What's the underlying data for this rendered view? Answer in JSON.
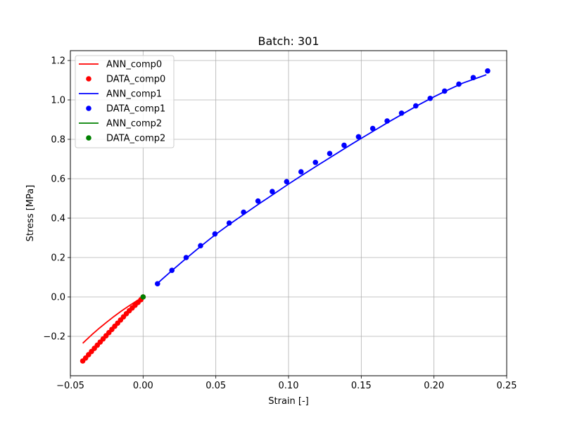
{
  "chart_data": {
    "type": "scatter",
    "title": "Batch: 301",
    "xlabel": "Strain [-]",
    "ylabel": "Stress [MPa]",
    "xlim": [
      -0.05,
      0.25
    ],
    "ylim": [
      -0.4,
      1.25
    ],
    "xticks": [
      -0.05,
      0.0,
      0.05,
      0.1,
      0.15,
      0.2,
      0.25
    ],
    "xtick_labels": [
      "−0.05",
      "0.00",
      "0.05",
      "0.10",
      "0.15",
      "0.20",
      "0.25"
    ],
    "yticks": [
      -0.2,
      0.0,
      0.2,
      0.4,
      0.6,
      0.8,
      1.0,
      1.2
    ],
    "ytick_labels": [
      "−0.2",
      "0.0",
      "0.2",
      "0.4",
      "0.6",
      "0.8",
      "1.0",
      "1.2"
    ],
    "grid": true,
    "legend_position": "top-left",
    "legend": [
      {
        "label": "ANN_comp0",
        "kind": "line",
        "color": "#ff0000"
      },
      {
        "label": "DATA_comp0",
        "kind": "marker",
        "color": "#ff0000"
      },
      {
        "label": "ANN_comp1",
        "kind": "line",
        "color": "#0000ff"
      },
      {
        "label": "DATA_comp1",
        "kind": "marker",
        "color": "#0000ff"
      },
      {
        "label": "ANN_comp2",
        "kind": "line",
        "color": "#008000"
      },
      {
        "label": "DATA_comp2",
        "kind": "marker",
        "color": "#008000"
      }
    ],
    "series": [
      {
        "name": "ANN_comp0",
        "kind": "line",
        "color": "#ff0000",
        "x": [
          -0.0415,
          -0.035,
          -0.03,
          -0.025,
          -0.02,
          -0.015,
          -0.01,
          -0.005,
          0.0
        ],
        "y": [
          -0.235,
          -0.19,
          -0.158,
          -0.128,
          -0.099,
          -0.072,
          -0.047,
          -0.023,
          0.0
        ]
      },
      {
        "name": "DATA_comp0",
        "kind": "marker",
        "color": "#ff0000",
        "x": [
          -0.0415,
          -0.0395,
          -0.0375,
          -0.0355,
          -0.0335,
          -0.0315,
          -0.0295,
          -0.0275,
          -0.0255,
          -0.0235,
          -0.0215,
          -0.0195,
          -0.0175,
          -0.0155,
          -0.0135,
          -0.0115,
          -0.0095,
          -0.0075,
          -0.0055,
          -0.0035,
          -0.0015,
          0.0
        ],
        "y": [
          -0.325,
          -0.31,
          -0.293,
          -0.277,
          -0.261,
          -0.245,
          -0.229,
          -0.213,
          -0.197,
          -0.181,
          -0.165,
          -0.149,
          -0.133,
          -0.117,
          -0.101,
          -0.085,
          -0.07,
          -0.056,
          -0.042,
          -0.028,
          -0.014,
          0.0
        ]
      },
      {
        "name": "ANN_comp1",
        "kind": "line",
        "color": "#0000ff",
        "x": [
          0.01,
          0.02,
          0.03,
          0.04,
          0.05,
          0.06,
          0.07,
          0.08,
          0.09,
          0.1,
          0.11,
          0.12,
          0.13,
          0.14,
          0.15,
          0.16,
          0.17,
          0.18,
          0.19,
          0.2,
          0.21,
          0.22,
          0.23,
          0.236
        ],
        "y": [
          0.07,
          0.135,
          0.198,
          0.259,
          0.318,
          0.372,
          0.423,
          0.474,
          0.523,
          0.573,
          0.621,
          0.668,
          0.714,
          0.76,
          0.805,
          0.849,
          0.893,
          0.935,
          0.977,
          1.016,
          1.052,
          1.086,
          1.112,
          1.128
        ]
      },
      {
        "name": "DATA_comp1",
        "kind": "marker",
        "color": "#0000ff",
        "x": [
          0.0099,
          0.0198,
          0.0296,
          0.0395,
          0.0494,
          0.0592,
          0.0691,
          0.079,
          0.0888,
          0.0987,
          0.1086,
          0.1185,
          0.1283,
          0.1382,
          0.1481,
          0.1579,
          0.1678,
          0.1777,
          0.1875,
          0.1974,
          0.2073,
          0.2171,
          0.227,
          0.2369
        ],
        "y": [
          0.067,
          0.135,
          0.2,
          0.26,
          0.32,
          0.375,
          0.43,
          0.487,
          0.535,
          0.585,
          0.635,
          0.683,
          0.728,
          0.77,
          0.813,
          0.855,
          0.893,
          0.933,
          0.97,
          1.008,
          1.045,
          1.08,
          1.113,
          1.147
        ]
      },
      {
        "name": "ANN_comp2",
        "kind": "line",
        "color": "#008000",
        "x": [
          0.0,
          0.0
        ],
        "y": [
          0.0,
          0.0
        ]
      },
      {
        "name": "DATA_comp2",
        "kind": "marker",
        "color": "#008000",
        "x": [
          0.0
        ],
        "y": [
          0.0
        ]
      }
    ]
  }
}
